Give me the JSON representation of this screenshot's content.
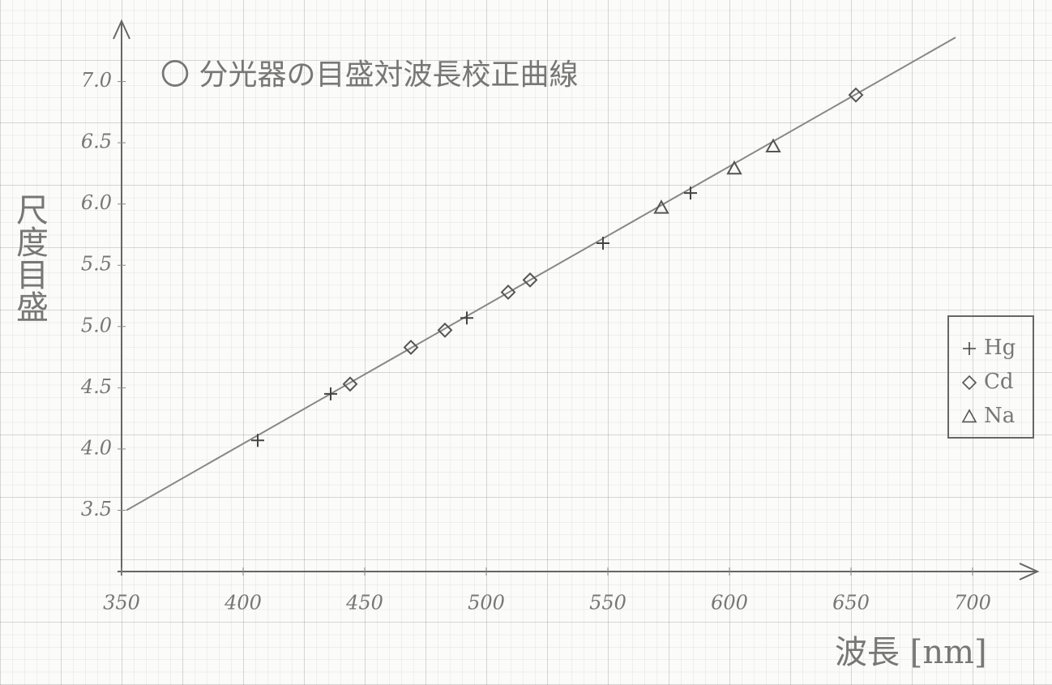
{
  "chart_data": {
    "type": "scatter",
    "title": "〇 分光器の目盛対波長校正曲線",
    "x_label": "波長 [nm]",
    "y_label": "尺度目盛",
    "xlim": [
      350,
      725
    ],
    "ylim": [
      3.0,
      7.5
    ],
    "xticks": [
      350,
      400,
      450,
      500,
      550,
      600,
      650,
      700
    ],
    "yticks": [
      {
        "value": 3.5,
        "label": "3.5"
      },
      {
        "value": 4,
        "label": "4.0"
      },
      {
        "value": 4.5,
        "label": "4.5"
      },
      {
        "value": 5,
        "label": "5.0"
      },
      {
        "value": 5.5,
        "label": "5.5"
      },
      {
        "value": 6,
        "label": "6.0"
      },
      {
        "value": 6.5,
        "label": "6.5"
      },
      {
        "value": 7,
        "label": "7.0"
      }
    ],
    "series": [
      {
        "name": "Hg",
        "marker": "plus",
        "color": "#444",
        "x": [
          406,
          436,
          492,
          548,
          584
        ],
        "values": [
          4.07,
          4.45,
          5.07,
          5.68,
          6.09
        ]
      },
      {
        "name": "Cd",
        "marker": "diamond",
        "color": "#555",
        "x": [
          444,
          469,
          483,
          509,
          518,
          652
        ],
        "values": [
          4.53,
          4.83,
          4.97,
          5.28,
          5.38,
          6.89
        ]
      },
      {
        "name": "Na",
        "marker": "triangle",
        "color": "#555",
        "x": [
          572,
          602,
          618
        ],
        "values": [
          5.97,
          6.29,
          6.47
        ]
      }
    ],
    "fit": {
      "x": [
        352,
        693
      ],
      "values": [
        3.5,
        7.36
      ],
      "color": "#888"
    },
    "legend": "right"
  }
}
